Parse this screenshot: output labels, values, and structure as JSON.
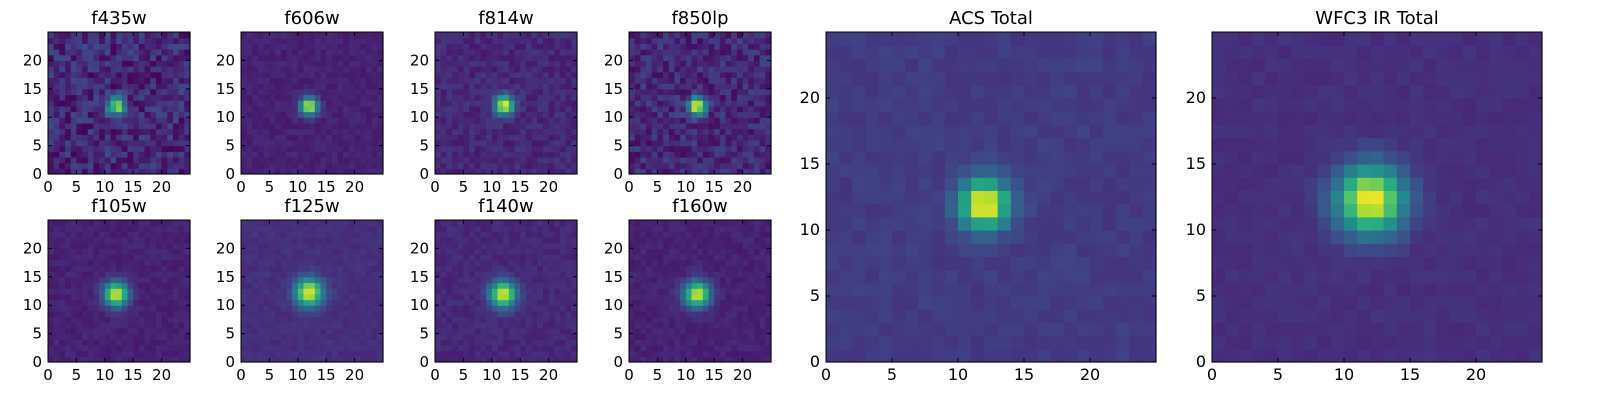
{
  "chart_data": [
    {
      "type": "heatmap",
      "title": "f435w",
      "peak": 0.72,
      "sigma": 1.1,
      "noise": 0.22,
      "bg": 0.12,
      "seed": 11,
      "xticks": [
        0,
        5,
        10,
        15,
        20
      ],
      "yticks": [
        0,
        5,
        10,
        15,
        20
      ],
      "xlim": [
        0,
        25
      ],
      "ylim": [
        0,
        25
      ],
      "center": [
        11.5,
        11.5
      ],
      "grid": false,
      "colormap": "viridis"
    },
    {
      "type": "heatmap",
      "title": "f606w",
      "peak": 0.85,
      "sigma": 1.1,
      "noise": 0.06,
      "bg": 0.1,
      "seed": 23,
      "xticks": [
        0,
        5,
        10,
        15,
        20
      ],
      "yticks": [
        0,
        5,
        10,
        15,
        20
      ],
      "xlim": [
        0,
        25
      ],
      "ylim": [
        0,
        25
      ],
      "center": [
        11.5,
        11.5
      ],
      "grid": false,
      "colormap": "viridis"
    },
    {
      "type": "heatmap",
      "title": "f814w",
      "peak": 0.85,
      "sigma": 1.2,
      "noise": 0.1,
      "bg": 0.12,
      "seed": 37,
      "xticks": [
        0,
        5,
        10,
        15,
        20
      ],
      "yticks": [
        0,
        5,
        10,
        15,
        20
      ],
      "xlim": [
        0,
        25
      ],
      "ylim": [
        0,
        25
      ],
      "center": [
        11.7,
        11.7
      ],
      "grid": false,
      "colormap": "viridis"
    },
    {
      "type": "heatmap",
      "title": "f850lp",
      "peak": 0.85,
      "sigma": 1.1,
      "noise": 0.18,
      "bg": 0.12,
      "seed": 41,
      "xticks": [
        0,
        5,
        10,
        15,
        20
      ],
      "yticks": [
        0,
        5,
        10,
        15,
        20
      ],
      "xlim": [
        0,
        25
      ],
      "ylim": [
        0,
        25
      ],
      "center": [
        11.5,
        11.5
      ],
      "grid": false,
      "colormap": "viridis"
    },
    {
      "type": "heatmap",
      "title": "ACS Total",
      "peak": 0.85,
      "sigma": 1.3,
      "noise": 0.05,
      "bg": 0.18,
      "seed": 53,
      "xticks": [
        0,
        5,
        10,
        15,
        20
      ],
      "yticks": [
        0,
        5,
        10,
        15,
        20
      ],
      "xlim": [
        0,
        25
      ],
      "ylim": [
        0,
        25
      ],
      "center": [
        11.5,
        11.5
      ],
      "grid": false,
      "colormap": "viridis"
    },
    {
      "type": "heatmap",
      "title": "WFC3 IR Total",
      "peak": 0.85,
      "sigma": 1.8,
      "noise": 0.04,
      "bg": 0.14,
      "seed": 67,
      "xticks": [
        0,
        5,
        10,
        15,
        20
      ],
      "yticks": [
        0,
        5,
        10,
        15,
        20
      ],
      "xlim": [
        0,
        25
      ],
      "ylim": [
        0,
        25
      ],
      "center": [
        11.5,
        11.8
      ],
      "grid": false,
      "colormap": "viridis"
    },
    {
      "type": "heatmap",
      "title": "f105w",
      "peak": 0.85,
      "sigma": 1.5,
      "noise": 0.06,
      "bg": 0.1,
      "seed": 71,
      "xticks": [
        0,
        5,
        10,
        15,
        20
      ],
      "yticks": [
        0,
        5,
        10,
        15,
        20
      ],
      "xlim": [
        0,
        25
      ],
      "ylim": [
        0,
        25
      ],
      "center": [
        11.5,
        11.5
      ],
      "grid": false,
      "colormap": "viridis"
    },
    {
      "type": "heatmap",
      "title": "f125w",
      "peak": 0.85,
      "sigma": 1.7,
      "noise": 0.05,
      "bg": 0.14,
      "seed": 83,
      "xticks": [
        0,
        5,
        10,
        15,
        20
      ],
      "yticks": [
        0,
        5,
        10,
        15,
        20
      ],
      "xlim": [
        0,
        25
      ],
      "ylim": [
        0,
        25
      ],
      "center": [
        11.5,
        11.8
      ],
      "grid": false,
      "colormap": "viridis"
    },
    {
      "type": "heatmap",
      "title": "f140w",
      "peak": 0.85,
      "sigma": 1.6,
      "noise": 0.06,
      "bg": 0.12,
      "seed": 97,
      "xticks": [
        0,
        5,
        10,
        15,
        20
      ],
      "yticks": [
        0,
        5,
        10,
        15,
        20
      ],
      "xlim": [
        0,
        25
      ],
      "ylim": [
        0,
        25
      ],
      "center": [
        11.5,
        11.5
      ],
      "grid": false,
      "colormap": "viridis"
    },
    {
      "type": "heatmap",
      "title": "f160w",
      "peak": 0.85,
      "sigma": 1.6,
      "noise": 0.06,
      "bg": 0.1,
      "seed": 101,
      "xticks": [
        0,
        5,
        10,
        15,
        20
      ],
      "yticks": [
        0,
        5,
        10,
        15,
        20
      ],
      "xlim": [
        0,
        25
      ],
      "ylim": [
        0,
        25
      ],
      "center": [
        11.5,
        11.5
      ],
      "grid": false,
      "colormap": "viridis"
    }
  ]
}
